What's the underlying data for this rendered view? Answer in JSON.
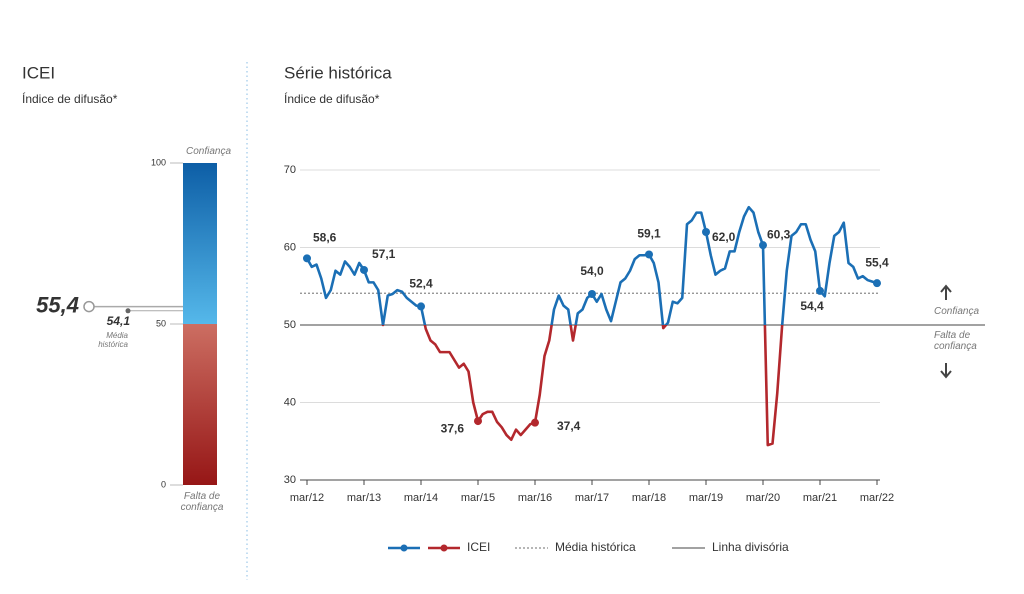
{
  "chart_data": [
    {
      "type": "gauge",
      "title": "ICEI",
      "subtitle": "Índice de difusão*",
      "value": 55.4,
      "value_label": "55,4",
      "color": "#1b6fb5",
      "reference": {
        "name": "Média histórica",
        "value": 54.1,
        "label": "54,1",
        "color": "#666666"
      },
      "ylim": [
        0,
        100
      ],
      "yticks": [
        0,
        50,
        100
      ],
      "threshold": 50,
      "top_label": "Confiança",
      "bottom_label": "Falta de confiança",
      "colors": {
        "top": "#0d5ea6",
        "upper_mid": "#55b8ea",
        "lower_mid": "#cc6e62",
        "bottom": "#961616"
      }
    },
    {
      "type": "line",
      "title": "Série histórica",
      "subtitle": "Índice de difusão*",
      "x": [
        "2012-03",
        "2012-04",
        "2012-05",
        "2012-06",
        "2012-07",
        "2012-08",
        "2012-09",
        "2012-10",
        "2012-11",
        "2012-12",
        "2013-01",
        "2013-02",
        "2013-03",
        "2013-04",
        "2013-05",
        "2013-06",
        "2013-07",
        "2013-08",
        "2013-09",
        "2013-10",
        "2013-11",
        "2013-12",
        "2014-01",
        "2014-02",
        "2014-03",
        "2014-04",
        "2014-05",
        "2014-06",
        "2014-07",
        "2014-08",
        "2014-09",
        "2014-10",
        "2014-11",
        "2014-12",
        "2015-01",
        "2015-02",
        "2015-03",
        "2015-04",
        "2015-05",
        "2015-06",
        "2015-07",
        "2015-08",
        "2015-09",
        "2015-10",
        "2015-11",
        "2015-12",
        "2016-01",
        "2016-02",
        "2016-03",
        "2016-04",
        "2016-05",
        "2016-06",
        "2016-07",
        "2016-08",
        "2016-09",
        "2016-10",
        "2016-11",
        "2016-12",
        "2017-01",
        "2017-02",
        "2017-03",
        "2017-04",
        "2017-05",
        "2017-06",
        "2017-07",
        "2017-08",
        "2017-09",
        "2017-10",
        "2017-11",
        "2017-12",
        "2018-01",
        "2018-02",
        "2018-03",
        "2018-04",
        "2018-05",
        "2018-06",
        "2018-07",
        "2018-08",
        "2018-09",
        "2018-10",
        "2018-11",
        "2018-12",
        "2019-01",
        "2019-02",
        "2019-03",
        "2019-04",
        "2019-05",
        "2019-06",
        "2019-07",
        "2019-08",
        "2019-09",
        "2019-10",
        "2019-11",
        "2019-12",
        "2020-01",
        "2020-02",
        "2020-03",
        "2020-04",
        "2020-05",
        "2020-06",
        "2020-07",
        "2020-08",
        "2020-09",
        "2020-10",
        "2020-11",
        "2020-12",
        "2021-01",
        "2021-02",
        "2021-03",
        "2021-04",
        "2021-05",
        "2021-06",
        "2021-07",
        "2021-08",
        "2021-09",
        "2021-10",
        "2021-11",
        "2021-12",
        "2022-01",
        "2022-02",
        "2022-03"
      ],
      "series": [
        {
          "name": "ICEI",
          "color": "#1b6fb5",
          "below_color": "#b3282d",
          "values": [
            58.6,
            57.5,
            57.8,
            56,
            53.5,
            54.5,
            57,
            56.5,
            58.2,
            57.5,
            56.5,
            58,
            57.1,
            55.5,
            55.5,
            54.5,
            50,
            53.8,
            54,
            54.5,
            54.3,
            53.5,
            53,
            52.5,
            52.4,
            49.5,
            48,
            47.5,
            46.5,
            46.5,
            46.5,
            45.5,
            44.5,
            45,
            44,
            40,
            37.6,
            38.5,
            38.8,
            38.8,
            37.5,
            36.8,
            35.8,
            35.2,
            36.5,
            35.8,
            36.5,
            37.2,
            37.4,
            41,
            46,
            48,
            52,
            53.8,
            52.5,
            52,
            48,
            51.5,
            52,
            53.5,
            54.0,
            53,
            54,
            52,
            50.5,
            53,
            55.5,
            56,
            57,
            58.5,
            59,
            59,
            59.1,
            58,
            55.5,
            49.6,
            50.3,
            53,
            52.8,
            53.5,
            63,
            63.5,
            64.5,
            64.5,
            62.0,
            59,
            56.5,
            57,
            57.3,
            59.5,
            59.5,
            62,
            64,
            65.2,
            64.5,
            62,
            60.3,
            34.5,
            34.7,
            41.2,
            49.7,
            57,
            61.5,
            62,
            63,
            63,
            61,
            59.5,
            54.4,
            53.7,
            58,
            61.5,
            62,
            63.2,
            58,
            57.5,
            56,
            56.3,
            55.8,
            55.6,
            55.4
          ],
          "value_labels": [
            "58,6",
            null,
            null,
            null,
            null,
            null,
            null,
            null,
            null,
            null,
            null,
            null,
            "57,1",
            null,
            null,
            null,
            null,
            null,
            null,
            null,
            null,
            null,
            null,
            null,
            "52,4",
            null,
            null,
            null,
            null,
            null,
            null,
            null,
            null,
            null,
            null,
            null,
            "37,6",
            null,
            null,
            null,
            null,
            null,
            null,
            null,
            null,
            null,
            null,
            null,
            "37,4",
            null,
            null,
            null,
            null,
            null,
            null,
            null,
            null,
            null,
            null,
            null,
            "54,0",
            null,
            null,
            null,
            null,
            null,
            null,
            null,
            null,
            null,
            null,
            null,
            "59,1",
            null,
            null,
            null,
            null,
            null,
            null,
            null,
            null,
            null,
            null,
            null,
            "62,0",
            null,
            null,
            null,
            null,
            null,
            null,
            null,
            null,
            null,
            null,
            null,
            "60,3",
            null,
            null,
            null,
            null,
            null,
            null,
            null,
            null,
            null,
            null,
            null,
            "54,4",
            null,
            null,
            null,
            null,
            null,
            null,
            null,
            null,
            null,
            null,
            null,
            "55,4"
          ]
        }
      ],
      "reference_lines": [
        {
          "name": "Média histórica",
          "value": 54.1,
          "style": "dotted",
          "color": "#8a8a8a"
        },
        {
          "name": "Linha divisória",
          "value": 50,
          "style": "solid",
          "color": "#6a6a6a"
        }
      ],
      "xticks": [
        {
          "value": "2012-03",
          "label": "mar/12"
        },
        {
          "value": "2013-03",
          "label": "mar/13"
        },
        {
          "value": "2014-03",
          "label": "mar/14"
        },
        {
          "value": "2015-03",
          "label": "mar/15"
        },
        {
          "value": "2016-03",
          "label": "mar/16"
        },
        {
          "value": "2017-03",
          "label": "mar/17"
        },
        {
          "value": "2018-03",
          "label": "mar/18"
        },
        {
          "value": "2019-03",
          "label": "mar/19"
        },
        {
          "value": "2020-03",
          "label": "mar/20"
        },
        {
          "value": "2021-03",
          "label": "mar/21"
        },
        {
          "value": "2022-03",
          "label": "mar/22"
        }
      ],
      "ylim": [
        30,
        70
      ],
      "yticks": [
        30,
        40,
        50,
        60,
        70
      ],
      "grid": true,
      "side_labels": {
        "above": "Confiança",
        "below": "Falta de confiança"
      }
    }
  ]
}
